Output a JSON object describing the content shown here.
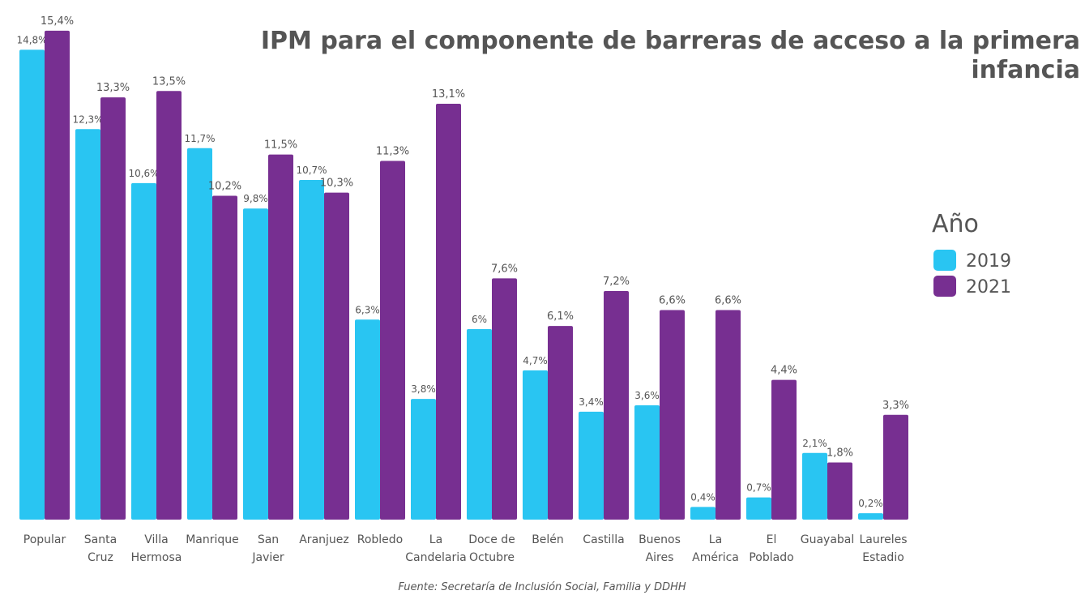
{
  "chart_data": {
    "type": "bar",
    "title": "IPM para el componente de barreras de acceso a la primera\ninfancia",
    "source": "Fuente: Secretaría de Inclusión Social, Familia y DDHH",
    "legend_title": "Año",
    "categories": [
      "Popular",
      "Santa\nCruz",
      "Villa\nHermosa",
      "Manrique",
      "San\nJavier",
      "Aranjuez",
      "Robledo",
      "La\nCandelaria",
      "Doce de\nOctubre",
      "Belén",
      "Castilla",
      "Buenos\nAires",
      "La\nAmérica",
      "El\nPoblado",
      "Guayabal",
      "Laureles\nEstadio"
    ],
    "series": [
      {
        "name": "2019",
        "color": "#29c5f2",
        "values": [
          14.8,
          12.3,
          10.6,
          11.7,
          9.8,
          10.7,
          6.3,
          3.8,
          6,
          4.7,
          3.4,
          3.6,
          0.4,
          0.7,
          2.1,
          0.2
        ],
        "value_labels": [
          "14,8%",
          "12,3%",
          "10,6%",
          "11,7%",
          "9,8%",
          "10,7%",
          "6,3%",
          "3,8%",
          "6%",
          "4,7%",
          "3,4%",
          "3,6%",
          "0,4%",
          "0,7%",
          "2,1%",
          "0,2%"
        ]
      },
      {
        "name": "2021",
        "color": "#772f91",
        "values": [
          15.4,
          13.3,
          13.5,
          10.2,
          11.5,
          10.3,
          11.3,
          13.1,
          7.6,
          6.1,
          7.2,
          6.6,
          6.6,
          4.4,
          1.8,
          3.3
        ],
        "value_labels": [
          "15,4%",
          "13,3%",
          "13,5%",
          "10,2%",
          "11,5%",
          "10,3%",
          "11,3%",
          "13,1%",
          "7,6%",
          "6,1%",
          "7,2%",
          "6,6%",
          "6,6%",
          "4,4%",
          "1,8%",
          "3,3%"
        ]
      }
    ],
    "ylim": [
      0,
      16
    ]
  }
}
